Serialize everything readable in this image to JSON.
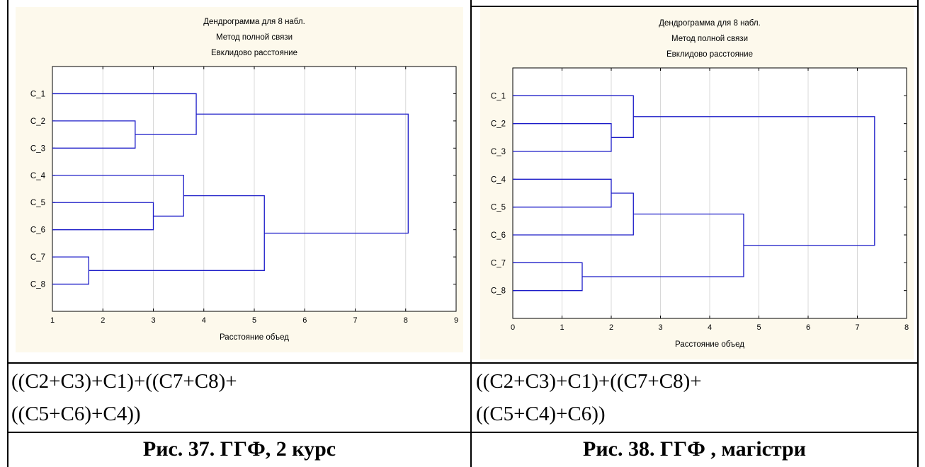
{
  "left": {
    "chart_data": {
      "type": "dendrogram",
      "title_lines": [
        "Дендрограмма для 8 набл.",
        "Метод полной связи",
        "Евклидово расстояние"
      ],
      "xlabel": "Расстояние объед",
      "xlim": [
        1,
        9
      ],
      "xticks": [
        1,
        2,
        3,
        4,
        5,
        6,
        7,
        8,
        9
      ],
      "leaves": [
        "C_1",
        "C_2",
        "C_3",
        "C_4",
        "C_5",
        "C_6",
        "C_7",
        "C_8"
      ],
      "merges": [
        {
          "a": "C_7",
          "b": "C_8",
          "height": 1.72
        },
        {
          "a": "C_2",
          "b": "C_3",
          "height": 2.64
        },
        {
          "a": "C_5",
          "b": "C_6",
          "height": 3.0
        },
        {
          "a": "(C_5+C_6)",
          "b": "C_4",
          "height": 3.6
        },
        {
          "a": "(C_2+C_3)",
          "b": "C_1",
          "height": 3.85
        },
        {
          "a": "(C_7+C_8)",
          "b": "((C_5+C_6)+C_4)",
          "height": 5.2
        },
        {
          "a": "((C_2+C_3)+C_1)",
          "b": "((C_7+C_8)+((C_5+C_6)+C_4))",
          "height": 8.05
        }
      ],
      "grid": true
    },
    "formula_line1": "((C2+C3)+C1)+((C7+C8)+",
    "formula_line2": "((C5+C6)+C4))",
    "caption": "Рис. 37. ГГФ, 2 курс"
  },
  "right": {
    "chart_data": {
      "type": "dendrogram",
      "title_lines": [
        "Дендрограмма для 8 набл.",
        "Метод полной связи",
        "Евклидово расстояние"
      ],
      "xlabel": "Расстояние объед",
      "xlim": [
        0,
        8
      ],
      "xticks": [
        0,
        1,
        2,
        3,
        4,
        5,
        6,
        7,
        8
      ],
      "leaves": [
        "C_1",
        "C_2",
        "C_3",
        "C_4",
        "C_5",
        "C_6",
        "C_7",
        "C_8"
      ],
      "merges": [
        {
          "a": "C_7",
          "b": "C_8",
          "height": 1.41
        },
        {
          "a": "C_2",
          "b": "C_3",
          "height": 2.0
        },
        {
          "a": "C_4",
          "b": "C_5",
          "height": 2.0
        },
        {
          "a": "(C_4+C_5)",
          "b": "C_6",
          "height": 2.45
        },
        {
          "a": "(C_2+C_3)",
          "b": "C_1",
          "height": 2.45
        },
        {
          "a": "(C_7+C_8)",
          "b": "((C_4+C_5)+C_6)",
          "height": 4.69
        },
        {
          "a": "((C_2+C_3)+C_1)",
          "b": "((C_7+C_8)+((C_4+C_5)+C_6))",
          "height": 7.35
        }
      ],
      "grid": true
    },
    "formula_line1": "((C2+C3)+C1)+((C7+C8)+",
    "formula_line2": "((C5+C4)+C6))",
    "caption": "Рис. 38. ГГФ , магістри"
  },
  "colors": {
    "line": "#1c1cc8",
    "fig_bg": "#fdf9ec",
    "plot_bg": "#ffffff",
    "grid": "#d8d8d8"
  }
}
